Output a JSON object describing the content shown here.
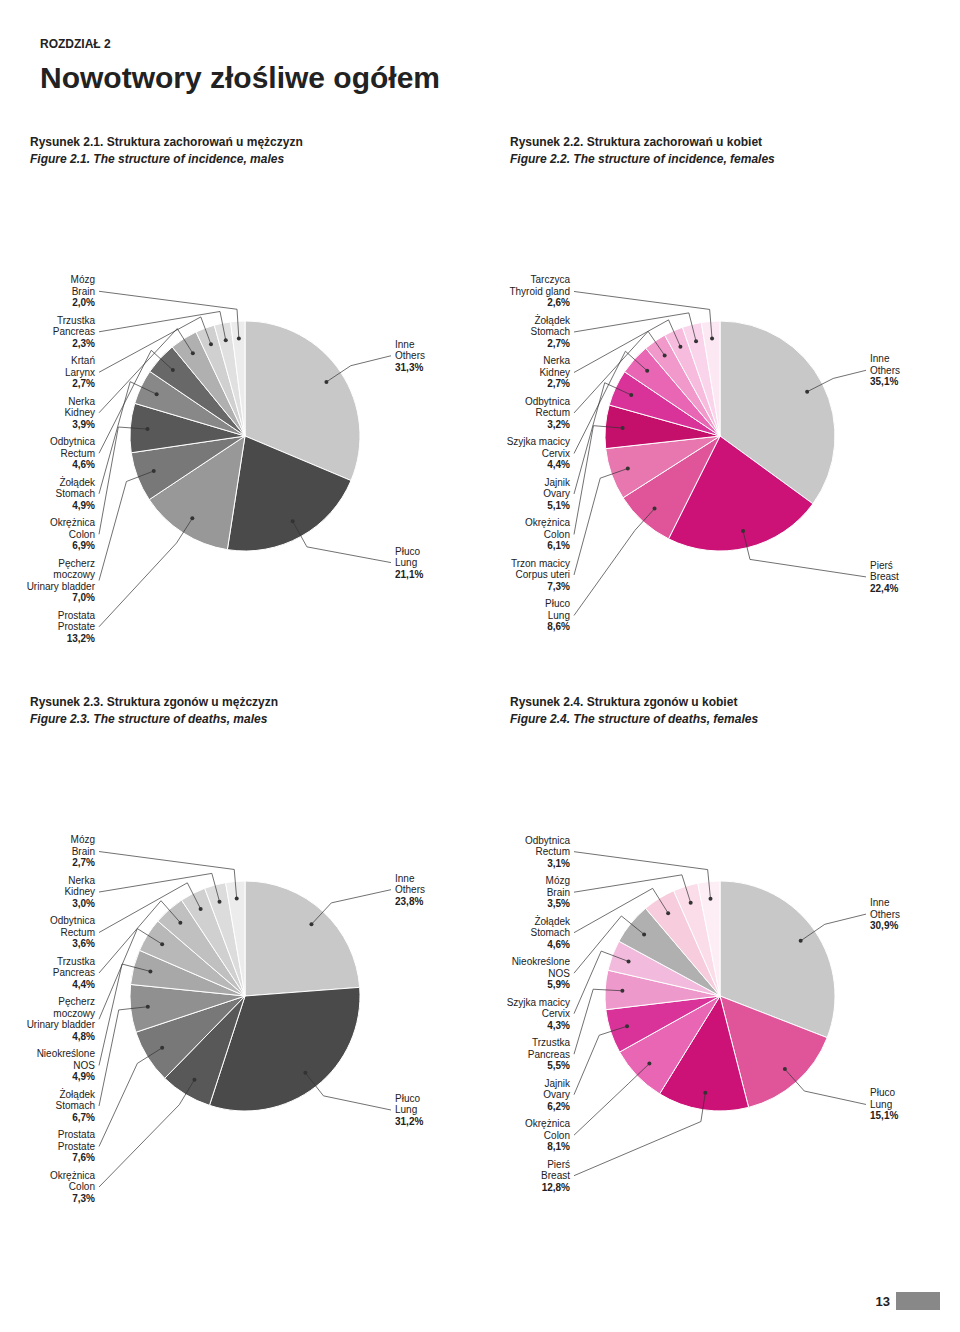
{
  "subtitle": "ROZDZIAŁ 2",
  "title": "Nowotwory złośliwe ogółem",
  "annotations": [
    "13"
  ],
  "chart_data": [
    {
      "type": "pie",
      "title": "Rysunek 2.1. Struktura zachorowań u mężczyzn",
      "subtitle": "Figure 2.1. The structure of incidence, males",
      "categories": [
        "Inne\nOthers",
        "Płuco\nLung",
        "Prostata\nProstate",
        "Pęcherz\nmoczowy\nUrinary bladder",
        "Okrężnica\nColon",
        "Żołądek\nStomach",
        "Odbytnica\nRectum",
        "Nerka\nKidney",
        "Krtań\nLarynx",
        "Trzustka\nPancreas",
        "Mózg\nBrain"
      ],
      "values": [
        31.3,
        21.1,
        13.2,
        7.0,
        6.9,
        4.9,
        4.6,
        3.9,
        2.7,
        2.3,
        2.0
      ],
      "value_labels": [
        "31,3%",
        "21,1%",
        "13,2%",
        "7,0%",
        "6,9%",
        "4,9%",
        "4,6%",
        "3,9%",
        "2,7%",
        "2,3%",
        "2,0%"
      ],
      "colors": [
        "#c8c8c8",
        "#4a4a4a",
        "#989898",
        "#787878",
        "#585858",
        "#888888",
        "#686868",
        "#b0b0b0",
        "#d0d0d0",
        "#e0e0e0",
        "#ececec"
      ],
      "data_labels": true
    },
    {
      "type": "pie",
      "title": "Rysunek 2.2. Struktura zachorowań u kobiet",
      "subtitle": "Figure 2.2. The structure of incidence, females",
      "categories": [
        "Inne\nOthers",
        "Pierś\nBreast",
        "Płuco\nLung",
        "Trzon macicy\nCorpus uteri",
        "Okrężnica\nColon",
        "Jajnik\nOvary",
        "Szyjka macicy\nCervix",
        "Odbytnica\nRectum",
        "Nerka\nKidney",
        "Żołądek\nStomach",
        "Tarczyca\nThyroid gland"
      ],
      "values": [
        35.1,
        22.4,
        8.6,
        7.3,
        6.1,
        5.1,
        4.4,
        3.2,
        2.7,
        2.7,
        2.6
      ],
      "value_labels": [
        "35,1%",
        "22,4%",
        "8,6%",
        "7,3%",
        "6,1%",
        "5,1%",
        "4,4%",
        "3,2%",
        "2,7%",
        "2,7%",
        "2,6%"
      ],
      "colors": [
        "#c8c8c8",
        "#cc1177",
        "#e0559a",
        "#e877b0",
        "#c40f6b",
        "#d9339a",
        "#e866b3",
        "#f299cc",
        "#f7bbdd",
        "#fad4eb",
        "#fce8f3"
      ],
      "data_labels": true
    },
    {
      "type": "pie",
      "title": "Rysunek 2.3. Struktura zgonów u mężczyzn",
      "subtitle": "Figure 2.3. The structure of deaths, males",
      "categories": [
        "Inne\nOthers",
        "Płuco\nLung",
        "Okrężnica\nColon",
        "Prostata\nProstate",
        "Żołądek\nStomach",
        "Nieokreślone\nNOS",
        "Pęcherz\nmoczowy\nUrinary bladder",
        "Trzustka\nPancreas",
        "Odbytnica\nRectum",
        "Nerka\nKidney",
        "Mózg\nBrain"
      ],
      "values": [
        23.8,
        31.2,
        7.3,
        7.6,
        6.7,
        4.9,
        4.8,
        4.4,
        3.6,
        3.0,
        2.7
      ],
      "value_labels": [
        "23,8%",
        "31,2%",
        "7,3%",
        "7,6%",
        "6,7%",
        "4,9%",
        "4,8%",
        "4,4%",
        "3,6%",
        "3,0%",
        "2,7%"
      ],
      "colors": [
        "#c8c8c8",
        "#4a4a4a",
        "#585858",
        "#787878",
        "#909090",
        "#a8a8a8",
        "#b8b8b8",
        "#c0c0c0",
        "#d0d0d0",
        "#dcdcdc",
        "#ececec"
      ],
      "data_labels": true
    },
    {
      "type": "pie",
      "title": "Rysunek 2.4. Struktura zgonów u kobiet",
      "subtitle": "Figure 2.4. The structure of deaths, females",
      "categories": [
        "Inne\nOthers",
        "Płuco\nLung",
        "Pierś\nBreast",
        "Okrężnica\nColon",
        "Jajnik\nOvary",
        "Trzustka\nPancreas",
        "Szyjka macicy\nCervix",
        "Nieokreślone\nNOS",
        "Żołądek\nStomach",
        "Mózg\nBrain",
        "Odbytnica\nRectum"
      ],
      "values": [
        30.9,
        15.1,
        12.8,
        8.1,
        6.2,
        5.5,
        4.3,
        5.9,
        4.6,
        3.5,
        3.1
      ],
      "value_labels": [
        "30,9%",
        "15,1%",
        "12,8%",
        "8,1%",
        "6,2%",
        "5,5%",
        "4,3%",
        "5,9%",
        "4,6%",
        "3,5%",
        "3,1%"
      ],
      "colors": [
        "#c8c8c8",
        "#e0559a",
        "#cc1177",
        "#e866b3",
        "#d9339a",
        "#ee99cc",
        "#f2bbdd",
        "#b0b0b0",
        "#f7ccdd",
        "#fadde8",
        "#fdeef5"
      ],
      "data_labels": true
    }
  ]
}
